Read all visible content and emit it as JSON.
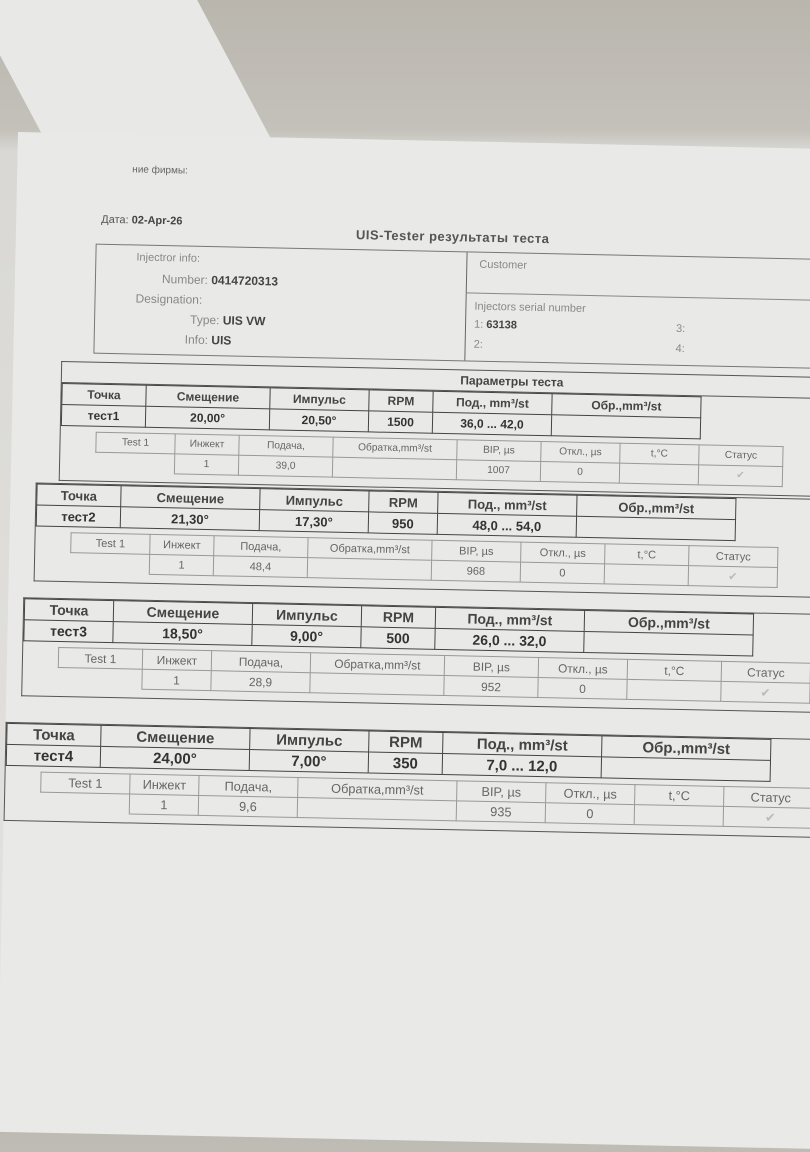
{
  "header": {
    "firm_label": "ние фирмы:",
    "date_label": "Дата:",
    "date_value": "02-Apr-26",
    "title": "UIS-Tester результаты теста"
  },
  "injector_info": {
    "section_label": "Injectror info:",
    "number_label": "Number:",
    "number_value": "0414720313",
    "designation_label": "Designation:",
    "type_label": "Type:",
    "type_value": "UIS VW",
    "info_label": "Info:",
    "info_value": "UIS"
  },
  "customer": {
    "label": "Customer",
    "serial_label": "Injectors serial number",
    "serials": [
      {
        "index": "1:",
        "value": "63138"
      },
      {
        "index": "2:",
        "value": ""
      },
      {
        "index": "3:",
        "value": ""
      },
      {
        "index": "4:",
        "value": ""
      }
    ]
  },
  "params_title": "Параметры теста",
  "main_headers": [
    "Точка",
    "Смещение",
    "Импульс",
    "RPM",
    "Под., mm³/st",
    "Обр.,mm³/st"
  ],
  "sub_headers": [
    "Test 1",
    "Инжект",
    "Подача,",
    "Обратка,mm³/st",
    "BIP, µs",
    "Откл., µs",
    "t,°C",
    "Статус"
  ],
  "status_icon": "checkmark-icon",
  "tests": [
    {
      "point": "тест1",
      "offset": "20,00°",
      "pulse": "20,50°",
      "rpm": "1500",
      "supply": "36,0 ... 42,0",
      "return": "",
      "result": {
        "injector": "1",
        "supply": "39,0",
        "return": "",
        "bip": "1007",
        "deviation": "0",
        "temp": ""
      }
    },
    {
      "point": "тест2",
      "offset": "21,30°",
      "pulse": "17,30°",
      "rpm": "950",
      "supply": "48,0 ... 54,0",
      "return": "",
      "result": {
        "injector": "1",
        "supply": "48,4",
        "return": "",
        "bip": "968",
        "deviation": "0",
        "temp": ""
      }
    },
    {
      "point": "тест3",
      "offset": "18,50°",
      "pulse": "9,00°",
      "rpm": "500",
      "supply": "26,0 ... 32,0",
      "return": "",
      "result": {
        "injector": "1",
        "supply": "28,9",
        "return": "",
        "bip": "952",
        "deviation": "0",
        "temp": ""
      }
    },
    {
      "point": "тест4",
      "offset": "24,00°",
      "pulse": "7,00°",
      "rpm": "350",
      "supply": "7,0 ... 12,0",
      "return": "",
      "result": {
        "injector": "1",
        "supply": "9,6",
        "return": "",
        "bip": "935",
        "deviation": "0",
        "temp": ""
      }
    }
  ]
}
